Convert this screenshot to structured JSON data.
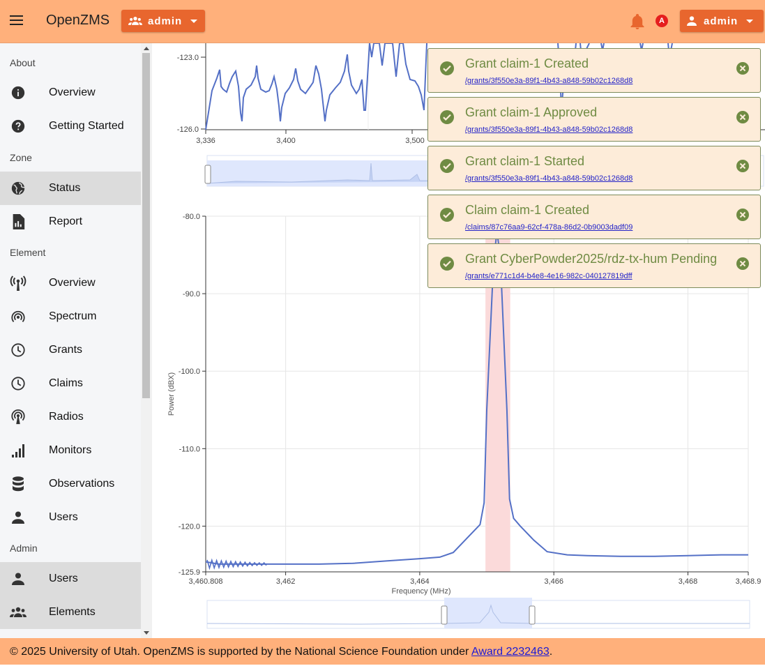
{
  "app": {
    "title": "OpenZMS"
  },
  "header": {
    "group_button_label": "admin",
    "user_button_label": "admin",
    "notification_badge": "A"
  },
  "sidebar": {
    "sections": [
      {
        "title": "About",
        "items": [
          {
            "label": "Overview",
            "icon": "info-icon"
          },
          {
            "label": "Getting Started",
            "icon": "help-icon"
          }
        ]
      },
      {
        "title": "Zone",
        "items": [
          {
            "label": "Status",
            "icon": "globe-icon",
            "active": true
          },
          {
            "label": "Report",
            "icon": "report-icon"
          }
        ]
      },
      {
        "title": "Element",
        "items": [
          {
            "label": "Overview",
            "icon": "antenna-icon"
          },
          {
            "label": "Spectrum",
            "icon": "spectrum-icon"
          },
          {
            "label": "Grants",
            "icon": "clock-icon"
          },
          {
            "label": "Claims",
            "icon": "clock-icon"
          },
          {
            "label": "Radios",
            "icon": "radio-tower-icon"
          },
          {
            "label": "Monitors",
            "icon": "signal-bars-icon"
          },
          {
            "label": "Observations",
            "icon": "database-icon"
          },
          {
            "label": "Users",
            "icon": "person-icon"
          }
        ]
      },
      {
        "title": "Admin",
        "items": [
          {
            "label": "Users",
            "icon": "person-icon",
            "active": true
          },
          {
            "label": "Elements",
            "icon": "group-icon",
            "active": true
          }
        ]
      }
    ]
  },
  "top_chart": {
    "y_ticks": [
      "-123.0",
      "-126.0"
    ],
    "x_ticks": [
      "3,336",
      "3,400",
      "3,500"
    ]
  },
  "chart_data": {
    "type": "line",
    "xlabel": "Frequency (MHz)",
    "ylabel": "Power (dBX)",
    "xlim": [
      3460.808,
      3468.9
    ],
    "ylim": [
      -125.9,
      -80.0
    ],
    "x_tick_labels": [
      "3,460.808",
      "3,462",
      "3,464",
      "3,466",
      "3,468",
      "3,468.9"
    ],
    "x_tick_values": [
      3460.808,
      3462,
      3464,
      3466,
      3468,
      3468.9
    ],
    "y_tick_labels": [
      "-80.0",
      "-90.0",
      "-100.0",
      "-110.0",
      "-120.0",
      "-125.9"
    ],
    "y_tick_values": [
      -80.0,
      -90.0,
      -100.0,
      -110.0,
      -120.0,
      -125.9
    ],
    "highlight_band": [
      3464.98,
      3465.35
    ],
    "series": [
      {
        "name": "power",
        "x": [
          3460.808,
          3461.0,
          3461.5,
          3462.0,
          3462.5,
          3463.0,
          3463.5,
          3464.0,
          3464.3,
          3464.5,
          3464.7,
          3464.9,
          3464.96,
          3465.0,
          3465.1,
          3465.15,
          3465.2,
          3465.3,
          3465.34,
          3465.4,
          3465.5,
          3465.7,
          3465.9,
          3466.2,
          3466.5,
          3467.0,
          3467.5,
          3468.0,
          3468.5,
          3468.9
        ],
        "y": [
          -124.6,
          -124.9,
          -124.9,
          -124.9,
          -124.9,
          -124.8,
          -124.5,
          -124.2,
          -124.0,
          -123.4,
          -121.6,
          -119.8,
          -117.0,
          -105.0,
          -86.0,
          -82.0,
          -85.0,
          -105.0,
          -116.5,
          -119.0,
          -120.0,
          -121.8,
          -123.3,
          -123.7,
          -123.8,
          -123.9,
          -123.9,
          -123.8,
          -123.7,
          -123.7
        ]
      }
    ]
  },
  "toasts": [
    {
      "title": "Grant claim-1 Created",
      "link": "/grants/3f550e3a-89f1-4b43-a848-59b02c1268d8"
    },
    {
      "title": "Grant claim-1 Approved",
      "link": "/grants/3f550e3a-89f1-4b43-a848-59b02c1268d8"
    },
    {
      "title": "Grant claim-1 Started",
      "link": "/grants/3f550e3a-89f1-4b43-a848-59b02c1268d8"
    },
    {
      "title": "Claim claim-1 Created",
      "link": "/claims/87c76aa9-62cf-478a-86d2-0b9003dadf09"
    },
    {
      "title": "Grant CyberPowder2025/rdz-tx-hum Pending",
      "link": "/grants/e771c1d4-b4e8-4e16-982c-040127819dff"
    }
  ],
  "footer": {
    "text": "© 2025 University of Utah. OpenZMS is supported by the National Science Foundation under",
    "link_label": "Award 2232463",
    "suffix": "."
  }
}
